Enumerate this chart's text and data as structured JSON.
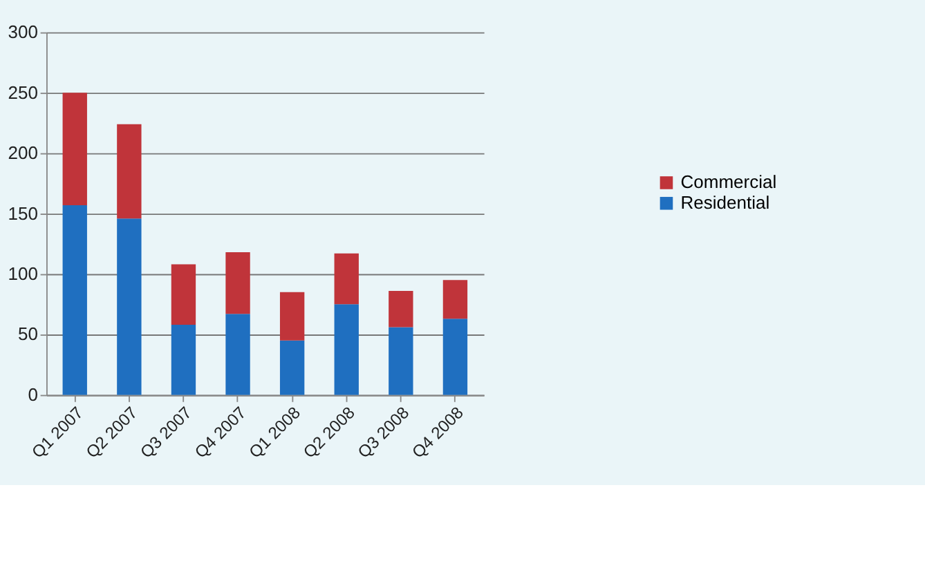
{
  "chart_data": {
    "type": "bar",
    "stacked": true,
    "categories": [
      "Q1 2007",
      "Q2 2007",
      "Q3 2007",
      "Q4 2007",
      "Q1 2008",
      "Q2 2008",
      "Q3 2008",
      "Q4 2008"
    ],
    "series": [
      {
        "name": "Residential",
        "color": "#1f6fc0",
        "values": [
          157,
          146,
          58,
          67,
          45,
          75,
          56,
          63
        ]
      },
      {
        "name": "Commercial",
        "color": "#c0343a",
        "values": [
          93,
          78,
          50,
          51,
          40,
          42,
          30,
          32
        ]
      }
    ],
    "ylim": [
      0,
      300
    ],
    "yticks": [
      0,
      50,
      100,
      150,
      200,
      250,
      300
    ],
    "grid": "y",
    "legend": "right"
  }
}
